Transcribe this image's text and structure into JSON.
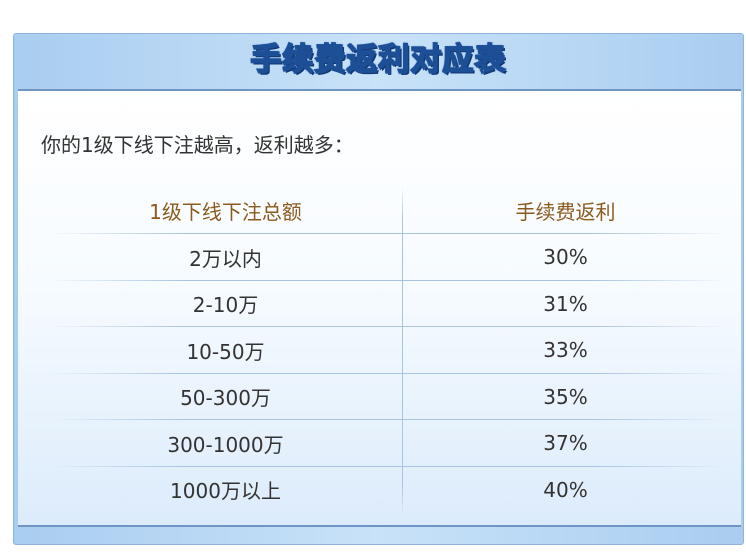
{
  "title": "手续费返利对应表",
  "intro": "你的1级下线下注越高，返利越多：",
  "table": {
    "headers": [
      "1级下线下注总额",
      "手续费返利"
    ],
    "rows": [
      [
        "2万以内",
        "30%"
      ],
      [
        "2-10万",
        "31%"
      ],
      [
        "10-50万",
        "33%"
      ],
      [
        "50-300万",
        "35%"
      ],
      [
        "300-1000万",
        "37%"
      ],
      [
        "1000万以上",
        "40%"
      ]
    ]
  },
  "colors": {
    "title_stroke": "#1d4f97",
    "header_text": "#8a5a1e",
    "body_text": "#333333",
    "frame": "#a9cdf0"
  }
}
